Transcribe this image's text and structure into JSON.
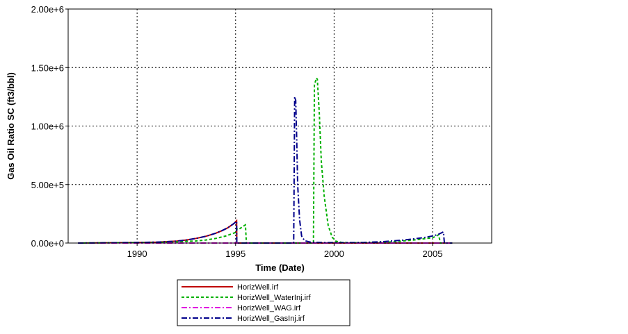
{
  "chart_data": {
    "type": "line",
    "title": "",
    "xlabel": "Time (Date)",
    "ylabel": "Gas Oil Ratio SC (ft3/bbl)",
    "xlim": [
      1986.5,
      2008.0
    ],
    "ylim": [
      0,
      2000000
    ],
    "x_ticks": [
      1990,
      1995,
      2000,
      2005
    ],
    "x_tick_labels": [
      "1990",
      "1995",
      "2000",
      "2005"
    ],
    "y_ticks": [
      0,
      500000,
      1000000,
      1500000,
      2000000
    ],
    "y_tick_labels": [
      "0.00e+0",
      "5.00e+5",
      "1.00e+6",
      "1.50e+6",
      "2.00e+6"
    ],
    "grid": true,
    "legend_position": "bottom-center",
    "series": [
      {
        "name": "HorizWell.irf",
        "color": "#c00000",
        "dash": "solid",
        "x": [
          1987.0,
          1988.0,
          1990.0,
          1991.0,
          1992.0,
          1992.5,
          1993.0,
          1993.5,
          1994.0,
          1994.3,
          1994.6,
          1994.9,
          1995.05,
          1995.06,
          1996.0,
          2000.0,
          2005.5,
          2006.0
        ],
        "y": [
          0,
          1000,
          5000,
          8000,
          16000,
          26000,
          40000,
          58000,
          84000,
          105000,
          130000,
          165000,
          190000,
          0,
          0,
          0,
          0,
          0
        ]
      },
      {
        "name": "HorizWell_WaterInj.irf",
        "color": "#00b000",
        "dash": "dashed",
        "x": [
          1987.0,
          1990.0,
          1991.0,
          1992.0,
          1993.0,
          1993.5,
          1994.0,
          1994.5,
          1995.0,
          1995.05,
          1995.15,
          1995.4,
          1995.5,
          1995.55,
          1998.95,
          1999.0,
          1999.1,
          1999.15,
          1999.25,
          1999.35,
          1999.5,
          1999.7,
          1999.9,
          2000.1,
          2000.4,
          2001.0,
          2002.0,
          2003.0,
          2004.0,
          2005.0,
          2005.2,
          2005.3,
          2005.4,
          2006.0
        ],
        "y": [
          0,
          3000,
          5000,
          10000,
          18000,
          26000,
          40000,
          60000,
          90000,
          120000,
          115000,
          145000,
          155000,
          0,
          0,
          1350000,
          1410000,
          1400000,
          1100000,
          700000,
          400000,
          150000,
          50000,
          15000,
          5000,
          3000,
          5000,
          10000,
          25000,
          45000,
          60000,
          70000,
          0,
          0
        ]
      },
      {
        "name": "HorizWell_WAG.irf",
        "color": "#e000e0",
        "dash": "dashdot",
        "x": [
          1987.0,
          1995.0,
          2000.0,
          2005.0,
          2006.0
        ],
        "y": [
          0,
          0,
          0,
          0,
          0
        ]
      },
      {
        "name": "HorizWell_GasInj.irf",
        "color": "#00008b",
        "dash": "dashdot",
        "x": [
          1987.0,
          1988.0,
          1990.0,
          1991.0,
          1992.0,
          1992.5,
          1993.0,
          1993.5,
          1994.0,
          1994.3,
          1994.6,
          1994.9,
          1995.05,
          1995.06,
          1997.95,
          1998.0,
          1998.05,
          1998.1,
          1998.15,
          1998.25,
          1998.35,
          1998.5,
          1998.8,
          1999.5,
          2000.5,
          2001.5,
          2002.5,
          2003.5,
          2004.5,
          2005.0,
          2005.3,
          2005.55,
          2005.6,
          2006.0
        ],
        "y": [
          0,
          1000,
          5000,
          8000,
          16000,
          26000,
          40000,
          58000,
          84000,
          105000,
          130000,
          165000,
          185000,
          0,
          0,
          1250000,
          1220000,
          900000,
          500000,
          200000,
          60000,
          20000,
          8000,
          4000,
          3000,
          5000,
          12000,
          25000,
          45000,
          60000,
          75000,
          95000,
          0,
          0
        ]
      }
    ]
  }
}
